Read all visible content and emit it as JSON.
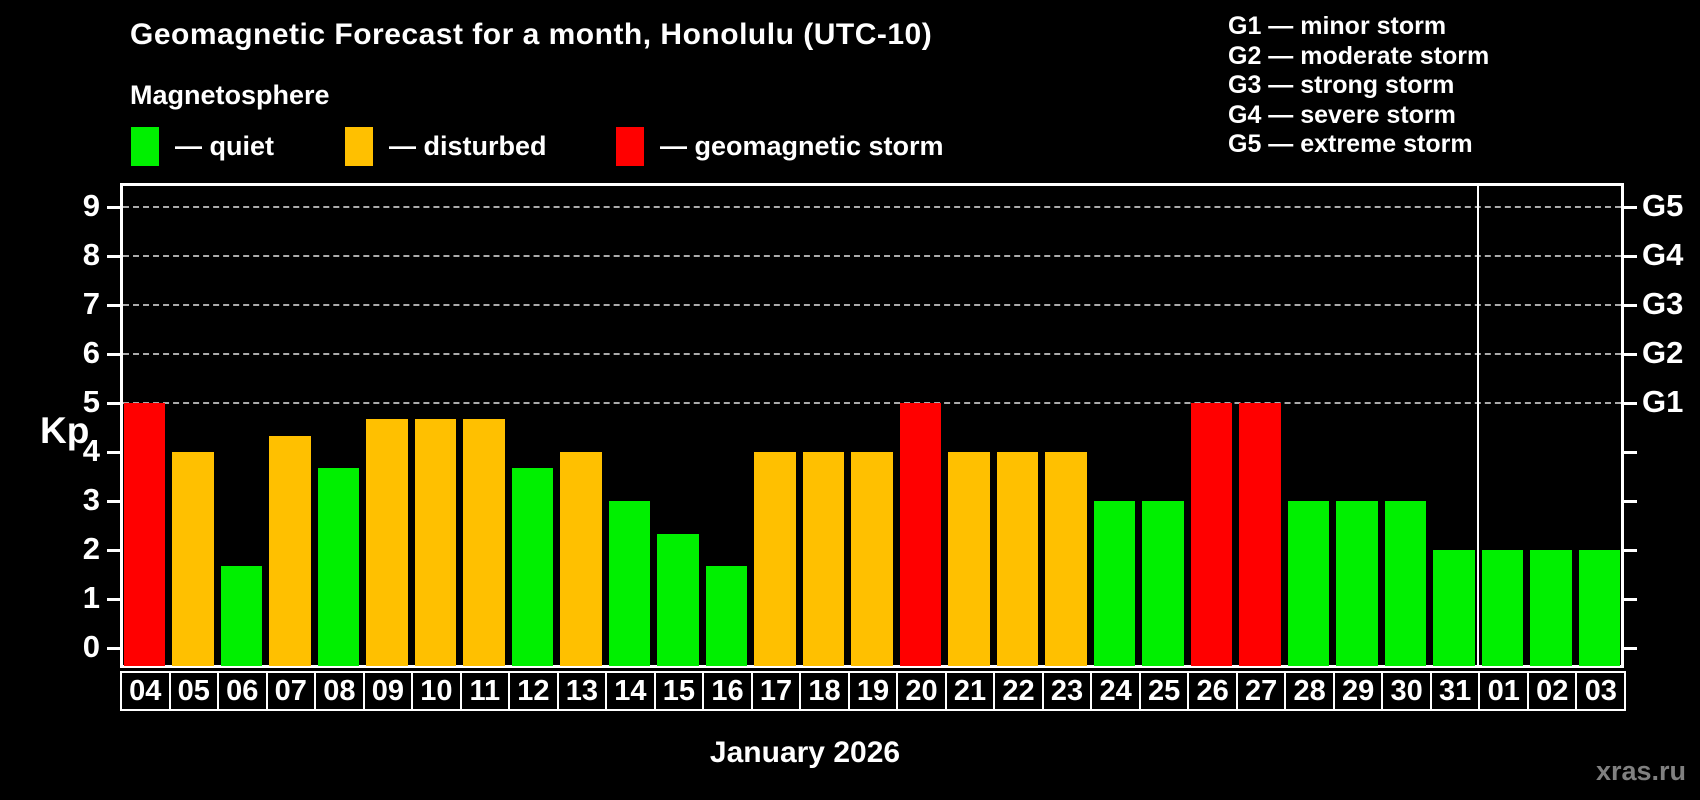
{
  "title": "Geomagnetic Forecast for a month, Honolulu (UTC-10)",
  "subtitle": "Magnetosphere",
  "legend": {
    "quiet_label": "— quiet",
    "disturbed_label": "— disturbed",
    "storm_label": "— geomagnetic storm"
  },
  "storm_scale_legend": [
    "G1 — minor storm",
    "G2 — moderate storm",
    "G3 — strong storm",
    "G4 — severe storm",
    "G5 — extreme storm"
  ],
  "footer": {
    "month_label": "January 2026",
    "watermark": "xras.ru"
  },
  "chart_data": {
    "type": "bar",
    "title": "Geomagnetic Forecast for a month, Honolulu (UTC-10)",
    "xlabel": "January 2026",
    "ylabel": "Kp",
    "ylim": [
      -0.4,
      9.5
    ],
    "yticks": [
      0,
      1,
      2,
      3,
      4,
      5,
      6,
      7,
      8,
      9
    ],
    "gridlines_at": [
      5,
      6,
      7,
      8,
      9
    ],
    "grid": "dashed",
    "legend_position": "top",
    "right_axis_labels": {
      "5": "G1",
      "6": "G2",
      "7": "G3",
      "8": "G4",
      "9": "G5"
    },
    "status_colors": {
      "quiet": "#00f000",
      "disturbed": "#ffc000",
      "storm": "#ff0000"
    },
    "categories": [
      "04",
      "05",
      "06",
      "07",
      "08",
      "09",
      "10",
      "11",
      "12",
      "13",
      "14",
      "15",
      "16",
      "17",
      "18",
      "19",
      "20",
      "21",
      "22",
      "23",
      "24",
      "25",
      "26",
      "27",
      "28",
      "29",
      "30",
      "31",
      "01",
      "02",
      "03"
    ],
    "values": [
      5.0,
      4.0,
      1.67,
      4.33,
      3.67,
      4.67,
      4.67,
      4.67,
      3.67,
      4.0,
      3.0,
      2.33,
      1.67,
      4.0,
      4.0,
      4.0,
      5.0,
      4.0,
      4.0,
      4.0,
      3.0,
      3.0,
      5.0,
      5.0,
      3.0,
      3.0,
      3.0,
      2.0,
      2.0,
      2.0,
      2.0
    ],
    "statuses": [
      "storm",
      "disturbed",
      "quiet",
      "disturbed",
      "quiet",
      "disturbed",
      "disturbed",
      "disturbed",
      "quiet",
      "disturbed",
      "quiet",
      "quiet",
      "quiet",
      "disturbed",
      "disturbed",
      "disturbed",
      "storm",
      "disturbed",
      "disturbed",
      "disturbed",
      "quiet",
      "quiet",
      "storm",
      "storm",
      "quiet",
      "quiet",
      "quiet",
      "quiet",
      "quiet",
      "quiet",
      "quiet"
    ],
    "month_separator_after_index": 27
  }
}
